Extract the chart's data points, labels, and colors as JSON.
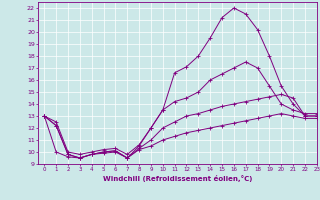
{
  "xlabel": "Windchill (Refroidissement éolien,°C)",
  "xlim": [
    -0.5,
    23
  ],
  "ylim": [
    9,
    22.5
  ],
  "xticks": [
    0,
    1,
    2,
    3,
    4,
    5,
    6,
    7,
    8,
    9,
    10,
    11,
    12,
    13,
    14,
    15,
    16,
    17,
    18,
    19,
    20,
    21,
    22,
    23
  ],
  "yticks": [
    9,
    10,
    11,
    12,
    13,
    14,
    15,
    16,
    17,
    18,
    19,
    20,
    21,
    22
  ],
  "bg_color": "#cce8e8",
  "line_color": "#800080",
  "grid_color": "#ffffff",
  "lines": [
    {
      "x": [
        0,
        1,
        2,
        3,
        4,
        5,
        6,
        7,
        8,
        9,
        10,
        11,
        12,
        13,
        14,
        15,
        16,
        17,
        18,
        19,
        20,
        21,
        22,
        23
      ],
      "y": [
        13.0,
        12.2,
        9.8,
        9.5,
        9.8,
        10.0,
        10.1,
        9.5,
        10.5,
        12.0,
        13.5,
        16.6,
        17.1,
        18.0,
        19.5,
        21.2,
        22.0,
        21.5,
        20.2,
        18.0,
        15.5,
        14.0,
        13.0,
        13.0
      ]
    },
    {
      "x": [
        0,
        1,
        2,
        3,
        4,
        5,
        6,
        7,
        8,
        9,
        10,
        11,
        12,
        13,
        14,
        15,
        16,
        17,
        18,
        19,
        20,
        21,
        22,
        23
      ],
      "y": [
        13.0,
        12.5,
        10.0,
        9.8,
        10.0,
        10.2,
        10.3,
        9.8,
        10.6,
        12.0,
        13.5,
        14.2,
        14.5,
        15.0,
        16.0,
        16.5,
        17.0,
        17.5,
        17.0,
        15.5,
        14.0,
        13.5,
        13.2,
        13.2
      ]
    },
    {
      "x": [
        0,
        1,
        2,
        3,
        4,
        5,
        6,
        7,
        8,
        9,
        10,
        11,
        12,
        13,
        14,
        15,
        16,
        17,
        18,
        19,
        20,
        21,
        22,
        23
      ],
      "y": [
        13.0,
        12.2,
        9.8,
        9.5,
        9.8,
        10.0,
        10.1,
        9.5,
        10.3,
        11.0,
        12.0,
        12.5,
        13.0,
        13.2,
        13.5,
        13.8,
        14.0,
        14.2,
        14.4,
        14.6,
        14.8,
        14.5,
        13.0,
        13.0
      ]
    },
    {
      "x": [
        0,
        1,
        2,
        3,
        4,
        5,
        6,
        7,
        8,
        9,
        10,
        11,
        12,
        13,
        14,
        15,
        16,
        17,
        18,
        19,
        20,
        21,
        22,
        23
      ],
      "y": [
        13.0,
        10.0,
        9.6,
        9.5,
        9.8,
        9.9,
        10.0,
        9.5,
        10.2,
        10.5,
        11.0,
        11.3,
        11.6,
        11.8,
        12.0,
        12.2,
        12.4,
        12.6,
        12.8,
        13.0,
        13.2,
        13.0,
        12.8,
        12.8
      ]
    }
  ]
}
